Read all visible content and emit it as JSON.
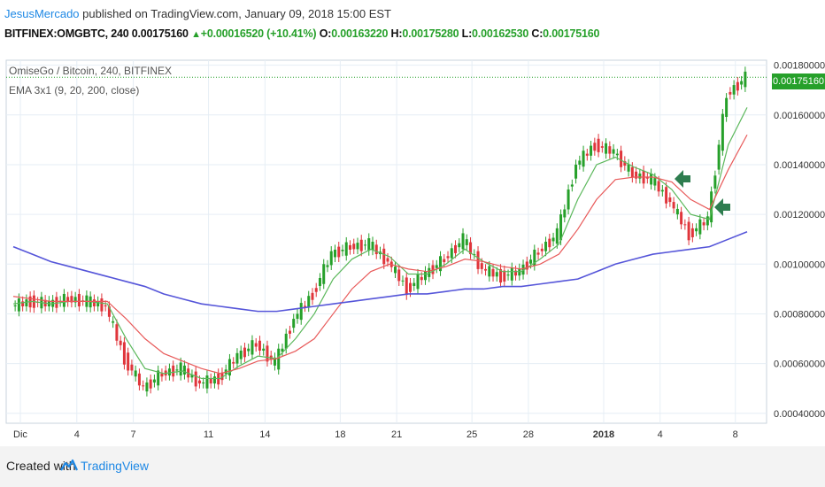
{
  "header": {
    "author": "JesusMercado",
    "published": " published on TradingView.com, January 09, 2018 15:00 EST",
    "symbol": "BITFINEX:OMGBTC, 240",
    "last": "0.00175160",
    "change_arrow": "▲",
    "change": "+0.00016520 (+10.41%)",
    "o_label": "O:",
    "o": "0.00163220",
    "h_label": "H:",
    "h": "0.00175280",
    "l_label": "L:",
    "l": "0.00162530",
    "c_label": "C:",
    "c": "0.00175160"
  },
  "legend": {
    "title": "OmiseGo / Bitcoin, 240, BITFINEX",
    "indicator": "EMA 3x1 (9, 20, 200, close)"
  },
  "price_label": "0.00175160",
  "footer": {
    "created_with": "Created with",
    "brand": "TradingView"
  },
  "colors": {
    "up": "#26a02a",
    "down": "#e0353b",
    "ema9": "#5cb85c",
    "ema20": "#e85a5a",
    "ema200": "#5555d9",
    "arrow": "#2e7d4f",
    "grid": "#e6eef5"
  },
  "chart_data": {
    "type": "line",
    "x_tick_labels": [
      "Dic",
      "4",
      "7",
      "11",
      "14",
      "18",
      "21",
      "25",
      "28",
      "2018",
      "4",
      "8"
    ],
    "y_tick_labels": [
      "0.00040000",
      "0.00060000",
      "0.00080000",
      "0.00100000",
      "0.00120000",
      "0.00140000",
      "0.00160000",
      "0.00180000"
    ],
    "ylim": [
      0.00036,
      0.00182
    ],
    "x": [
      "Dic 1",
      "Dic 2",
      "Dic 3",
      "Dic 4",
      "Dic 5",
      "Dic 6",
      "Dic 7",
      "Dic 8",
      "Dic 9",
      "Dic 10",
      "Dic 11",
      "Dic 12",
      "Dic 13",
      "Dic 14",
      "Dic 15",
      "Dic 16",
      "Dic 17",
      "Dic 18",
      "Dic 19",
      "Dic 20",
      "Dic 21",
      "Dic 22",
      "Dic 23",
      "Dic 24",
      "Dic 25",
      "Dic 26",
      "Dic 27",
      "Dic 28",
      "Dic 29",
      "Dic 30",
      "Dic 31",
      "Ene 1",
      "Ene 2",
      "Ene 3",
      "Ene 4",
      "Ene 5",
      "Ene 6",
      "Ene 7",
      "Ene 8",
      "Ene 9"
    ],
    "series": [
      {
        "values": [
          0.00083,
          0.00085,
          0.00084,
          0.00086,
          0.00085,
          0.00083,
          0.00062,
          0.0005,
          0.00056,
          0.00058,
          0.00052,
          0.00054,
          0.00063,
          0.00068,
          0.0006,
          0.00078,
          0.00088,
          0.00104,
          0.00107,
          0.00108,
          0.00101,
          0.0009,
          0.00096,
          0.00102,
          0.0011,
          0.00098,
          0.00095,
          0.00097,
          0.00105,
          0.00112,
          0.0014,
          0.00148,
          0.00145,
          0.00136,
          0.00134,
          0.00125,
          0.00112,
          0.00118,
          0.00168,
          0.00175
        ]
      },
      {
        "values": [
          0.00084,
          0.00085,
          0.00084,
          0.00085,
          0.00085,
          0.00084,
          0.0007,
          0.00058,
          0.00056,
          0.00057,
          0.00054,
          0.00054,
          0.00059,
          0.00063,
          0.00062,
          0.0007,
          0.0008,
          0.00094,
          0.00102,
          0.00106,
          0.00103,
          0.00096,
          0.00096,
          0.001,
          0.00106,
          0.00101,
          0.00097,
          0.00097,
          0.00102,
          0.00108,
          0.00126,
          0.0014,
          0.00143,
          0.00139,
          0.00136,
          0.0013,
          0.0012,
          0.00118,
          0.00148,
          0.00163
        ]
      },
      {
        "values": [
          0.00087,
          0.00086,
          0.00085,
          0.00085,
          0.00085,
          0.00085,
          0.00078,
          0.0007,
          0.00064,
          0.00061,
          0.00058,
          0.00056,
          0.00058,
          0.00061,
          0.00062,
          0.00065,
          0.0007,
          0.0008,
          0.0009,
          0.00097,
          0.001,
          0.00098,
          0.00097,
          0.00099,
          0.00102,
          0.00101,
          0.00099,
          0.00098,
          0.001,
          0.00104,
          0.00114,
          0.00126,
          0.00134,
          0.00135,
          0.00135,
          0.00133,
          0.00126,
          0.00122,
          0.00138,
          0.00152
        ]
      },
      {
        "values": [
          0.00107,
          0.00104,
          0.00101,
          0.00099,
          0.00097,
          0.00095,
          0.00093,
          0.00091,
          0.00088,
          0.00086,
          0.00084,
          0.00083,
          0.00082,
          0.00081,
          0.00081,
          0.00082,
          0.00083,
          0.00084,
          0.00085,
          0.00086,
          0.00087,
          0.00088,
          0.00088,
          0.00089,
          0.0009,
          0.0009,
          0.00091,
          0.00091,
          0.00092,
          0.00093,
          0.00094,
          0.00097,
          0.001,
          0.00102,
          0.00104,
          0.00105,
          0.00106,
          0.00107,
          0.0011,
          0.00113
        ]
      }
    ],
    "grid": true
  }
}
